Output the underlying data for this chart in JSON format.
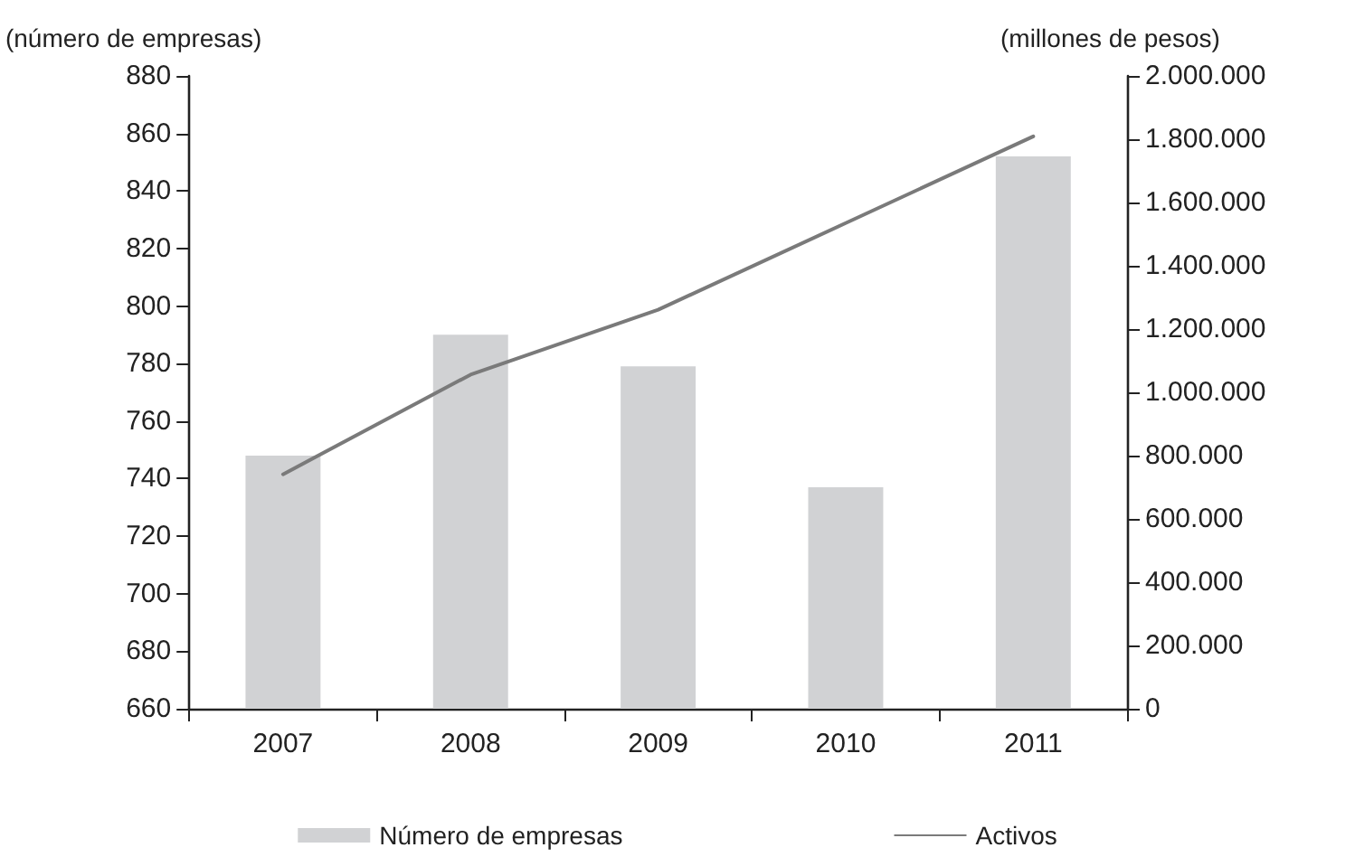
{
  "chart_data": {
    "type": "bar",
    "ylabel": "(número de empresas)",
    "y2label": "(millones de pesos)",
    "categories": [
      "2007",
      "2008",
      "2009",
      "2010",
      "2011"
    ],
    "series": [
      {
        "name": "Número de empresas",
        "color": "#d1d2d4",
        "values": [
          748,
          790,
          779,
          737,
          852
        ]
      },
      {
        "name": "Activos",
        "type": "line",
        "axis": "y2",
        "color": "#7a7a7a",
        "values": [
          741000,
          1056000,
          1261000,
          1535000,
          1809000
        ]
      }
    ],
    "ylim": [
      660,
      880
    ],
    "yticks": [
      660,
      680,
      700,
      720,
      740,
      760,
      780,
      800,
      820,
      840,
      860,
      880
    ],
    "y2lim": [
      0,
      2000000
    ],
    "y2ticks": [
      0,
      {
        "value": 200000,
        "label": "200.000"
      },
      {
        "value": 400000,
        "label": "400.000"
      },
      {
        "value": 600000,
        "label": "600.000"
      },
      {
        "value": 800000,
        "label": "800.000"
      },
      {
        "value": 1000000,
        "label": "1.000.000"
      },
      {
        "value": 1200000,
        "label": "1.200.000"
      },
      {
        "value": 1400000,
        "label": "1.400.000"
      },
      {
        "value": 1600000,
        "label": "1.600.000"
      },
      {
        "value": 1800000,
        "label": "1.800.000"
      },
      {
        "value": 2000000,
        "label": "2.000.000"
      }
    ],
    "grid": false,
    "legend": "bottom",
    "marker": "none",
    "line_style": "solid"
  }
}
